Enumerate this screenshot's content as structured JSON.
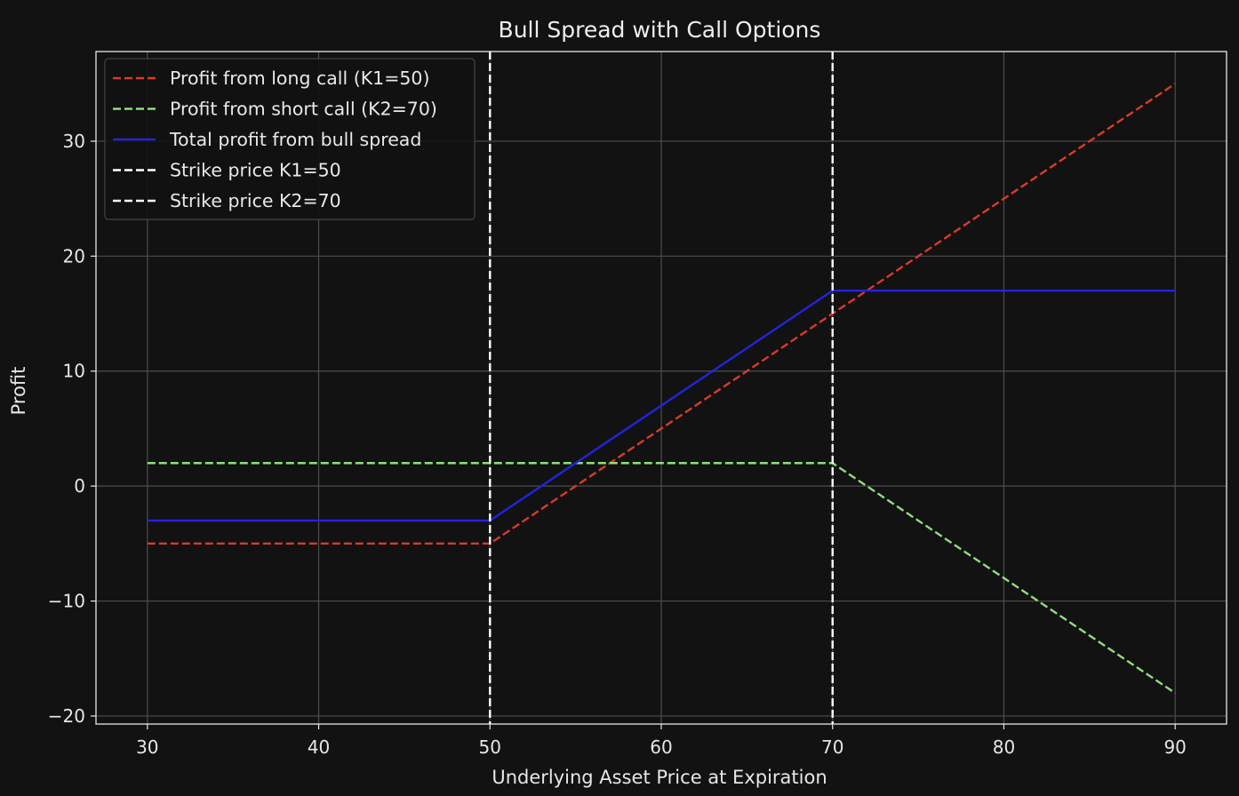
{
  "chart_data": {
    "type": "line",
    "title": "Bull Spread with Call Options",
    "xlabel": "Underlying Asset Price at Expiration",
    "ylabel": "Profit",
    "xlim": [
      27,
      93
    ],
    "ylim": [
      -20.7,
      37.8
    ],
    "xticks": [
      30,
      40,
      50,
      60,
      70,
      80,
      90
    ],
    "yticks": [
      -20,
      -10,
      0,
      10,
      20,
      30
    ],
    "grid": true,
    "legend_position": "top-left",
    "series": [
      {
        "name": "Profit from long call (K1=50)",
        "color": "#d93a2b",
        "style": "dashed",
        "x": [
          30,
          50,
          90
        ],
        "y": [
          -5,
          -5,
          35
        ]
      },
      {
        "name": "Profit from short call (K2=70)",
        "color": "#8be07a",
        "style": "dashed",
        "x": [
          30,
          70,
          90
        ],
        "y": [
          2,
          2,
          -18
        ]
      },
      {
        "name": "Total profit from bull spread",
        "color": "#2323e0",
        "style": "solid",
        "x": [
          30,
          50,
          70,
          90
        ],
        "y": [
          -3,
          -3,
          17,
          17
        ]
      }
    ],
    "vlines": [
      {
        "name": "Strike price K1=50",
        "x": 50,
        "color": "#ffffff",
        "style": "dashed"
      },
      {
        "name": "Strike price K2=70",
        "x": 70,
        "color": "#ffffff",
        "style": "dashed"
      }
    ]
  }
}
